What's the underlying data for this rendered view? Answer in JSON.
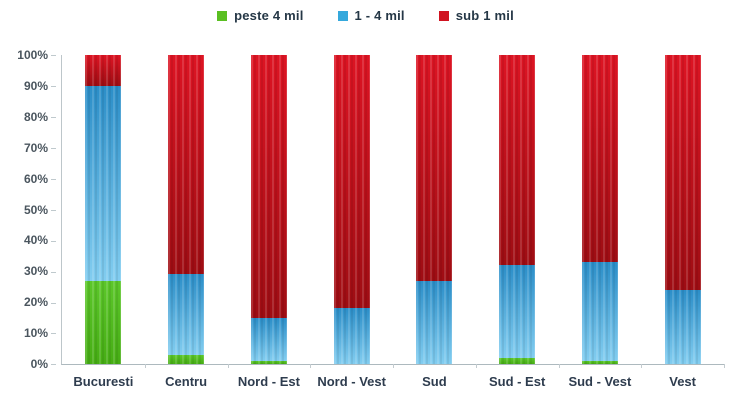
{
  "chart_data": {
    "type": "bar",
    "stacked": true,
    "percent_stacked": true,
    "title": "",
    "xlabel": "",
    "ylabel": "",
    "grid": false,
    "categories": [
      "Bucuresti",
      "Centru",
      "Nord - Est",
      "Nord - Vest",
      "Sud",
      "Sud - Est",
      "Sud - Vest",
      "Vest"
    ],
    "series": [
      {
        "name": "peste 4 mil",
        "color": "#5abf22",
        "gradient_top": "#5cc72a",
        "gradient_bottom": "#46ad14",
        "values": [
          27,
          3,
          1,
          0,
          0,
          2,
          1,
          0
        ]
      },
      {
        "name": "1 - 4 mil",
        "color": "#35a8dc",
        "gradient_top": "#2b8ec8",
        "gradient_bottom": "#82cdf0",
        "values": [
          63,
          26,
          14,
          18,
          27,
          30,
          32,
          24
        ]
      },
      {
        "name": "sub 1 mil",
        "color": "#d01320",
        "gradient_top": "#dd1423",
        "gradient_bottom": "#9e0d13",
        "values": [
          10,
          71,
          85,
          82,
          73,
          68,
          67,
          76
        ]
      }
    ],
    "legend": {
      "position": "top",
      "entries": [
        "peste 4 mil",
        "1 - 4 mil",
        "sub 1 mil"
      ]
    },
    "y_axis": {
      "min": 0,
      "max": 100,
      "tick_step": 10,
      "tick_labels": [
        "100%",
        "90%",
        "80%",
        "70%",
        "60%",
        "50%",
        "40%",
        "30%",
        "20%",
        "10%",
        "0%"
      ]
    }
  }
}
